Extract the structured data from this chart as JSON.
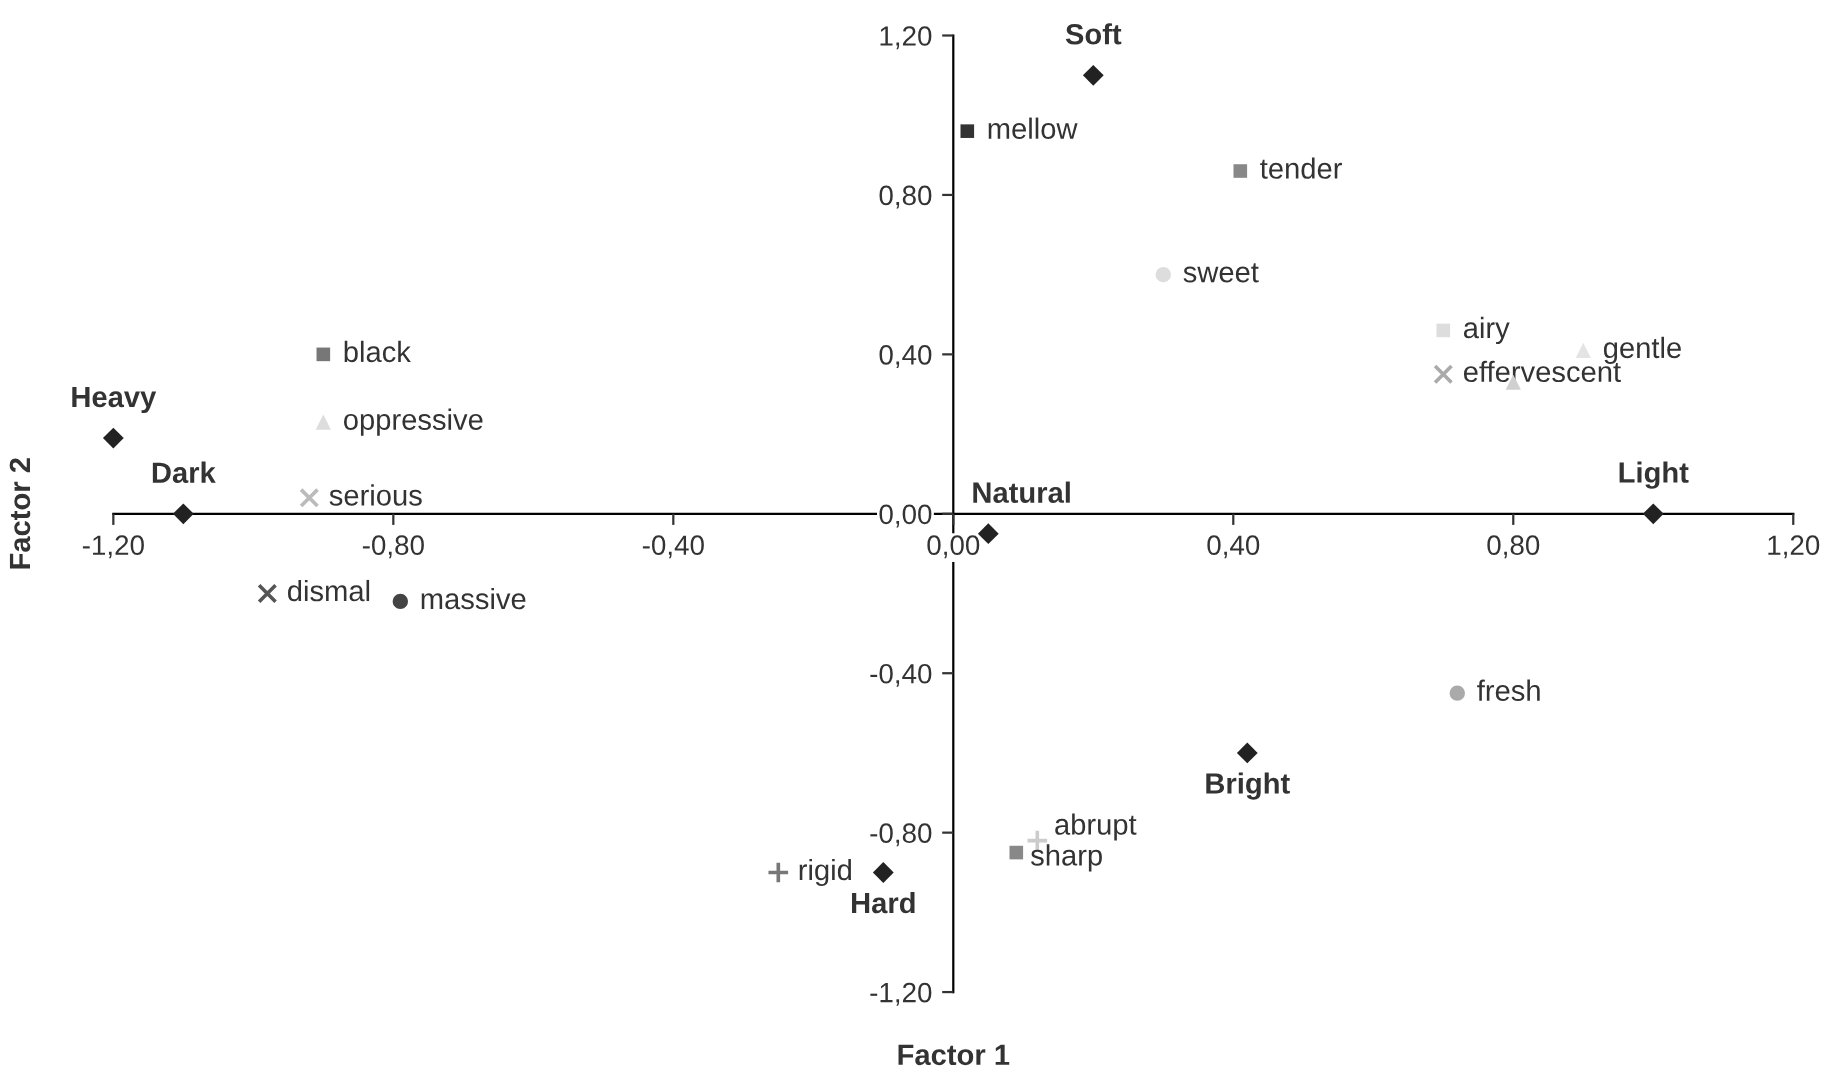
{
  "chart_data": {
    "type": "scatter",
    "xlabel": "Factor 1",
    "ylabel": "Factor 2",
    "xlim": [
      -1.2,
      1.2
    ],
    "ylim": [
      -1.2,
      1.2
    ],
    "xticks": [
      {
        "value": -1.2,
        "label": "-1,20"
      },
      {
        "value": -0.8,
        "label": "-0,80"
      },
      {
        "value": -0.4,
        "label": "-0,40"
      },
      {
        "value": 0,
        "label": "0,00"
      },
      {
        "value": 0.4,
        "label": "0,40"
      },
      {
        "value": 0.8,
        "label": "0,80"
      },
      {
        "value": 1.2,
        "label": "1,20"
      }
    ],
    "yticks": [
      {
        "value": -1.2,
        "label": "-1,20"
      },
      {
        "value": -0.8,
        "label": "-0,80"
      },
      {
        "value": -0.4,
        "label": "-0,40"
      },
      {
        "value": 0,
        "label": "0,00"
      },
      {
        "value": 0.4,
        "label": "0,40"
      },
      {
        "value": 0.8,
        "label": "0,80"
      },
      {
        "value": 1.2,
        "label": "1,20"
      }
    ],
    "grid": false,
    "series": [
      {
        "name": "Soft",
        "color": "#222222",
        "marker": "diamond",
        "x": [
          0.2
        ],
        "values": [
          1.1
        ]
      },
      {
        "name": "Heavy",
        "color": "#222222",
        "marker": "diamond",
        "x": [
          -1.2
        ],
        "values": [
          0.19
        ]
      },
      {
        "name": "Dark",
        "color": "#222222",
        "marker": "diamond",
        "x": [
          -1.1
        ],
        "values": [
          0.0
        ]
      },
      {
        "name": "Natural",
        "color": "#222222",
        "marker": "diamond",
        "x": [
          0.05
        ],
        "values": [
          -0.05
        ]
      },
      {
        "name": "Light",
        "color": "#222222",
        "marker": "diamond",
        "x": [
          1.0
        ],
        "values": [
          0.0
        ]
      },
      {
        "name": "Bright",
        "color": "#222222",
        "marker": "diamond",
        "x": [
          0.42
        ],
        "values": [
          -0.6
        ]
      },
      {
        "name": "Hard",
        "color": "#222222",
        "marker": "diamond",
        "x": [
          -0.1
        ],
        "values": [
          -0.9
        ]
      },
      {
        "name": "mellow",
        "color": "#333333",
        "marker": "square",
        "x": [
          0.02
        ],
        "values": [
          0.96
        ]
      },
      {
        "name": "tender",
        "color": "#888888",
        "marker": "square",
        "x": [
          0.41
        ],
        "values": [
          0.86
        ]
      },
      {
        "name": "sweet",
        "color": "#dddddd",
        "marker": "circle",
        "x": [
          0.3
        ],
        "values": [
          0.6
        ]
      },
      {
        "name": "airy",
        "color": "#dddddd",
        "marker": "square",
        "x": [
          0.7
        ],
        "values": [
          0.46
        ]
      },
      {
        "name": "gentle",
        "color": "#e4e4e4",
        "marker": "triangle",
        "x": [
          0.9
        ],
        "values": [
          0.41
        ]
      },
      {
        "name": "effervescent",
        "color": "#aaaaaa",
        "marker": "cross",
        "x": [
          0.7
        ],
        "values": [
          0.35
        ]
      },
      {
        "color": "#d0d0d0",
        "marker": "triangle",
        "x": [
          0.8
        ],
        "values": [
          0.33
        ]
      },
      {
        "name": "black",
        "color": "#777777",
        "marker": "square",
        "x": [
          -0.9
        ],
        "values": [
          0.4
        ]
      },
      {
        "name": "oppressive",
        "color": "#dddddd",
        "marker": "triangle",
        "x": [
          -0.9
        ],
        "values": [
          0.23
        ]
      },
      {
        "name": "serious",
        "color": "#bbbbbb",
        "marker": "cross",
        "x": [
          -0.92
        ],
        "values": [
          0.04
        ]
      },
      {
        "name": "dismal",
        "color": "#555555",
        "marker": "cross",
        "x": [
          -0.98
        ],
        "values": [
          -0.2
        ]
      },
      {
        "name": "massive",
        "color": "#444444",
        "marker": "circle",
        "x": [
          -0.79
        ],
        "values": [
          -0.22
        ]
      },
      {
        "name": "fresh",
        "color": "#aaaaaa",
        "marker": "circle",
        "x": [
          0.72
        ],
        "values": [
          -0.45
        ]
      },
      {
        "name": "abrupt",
        "color": "#cccccc",
        "marker": "plus",
        "x": [
          0.12
        ],
        "values": [
          -0.82
        ]
      },
      {
        "name": "sharp",
        "color": "#888888",
        "marker": "square",
        "x": [
          0.09
        ],
        "values": [
          -0.85
        ]
      },
      {
        "name": "rigid",
        "color": "#777777",
        "marker": "plus",
        "x": [
          -0.25
        ],
        "values": [
          -0.9
        ]
      }
    ]
  }
}
